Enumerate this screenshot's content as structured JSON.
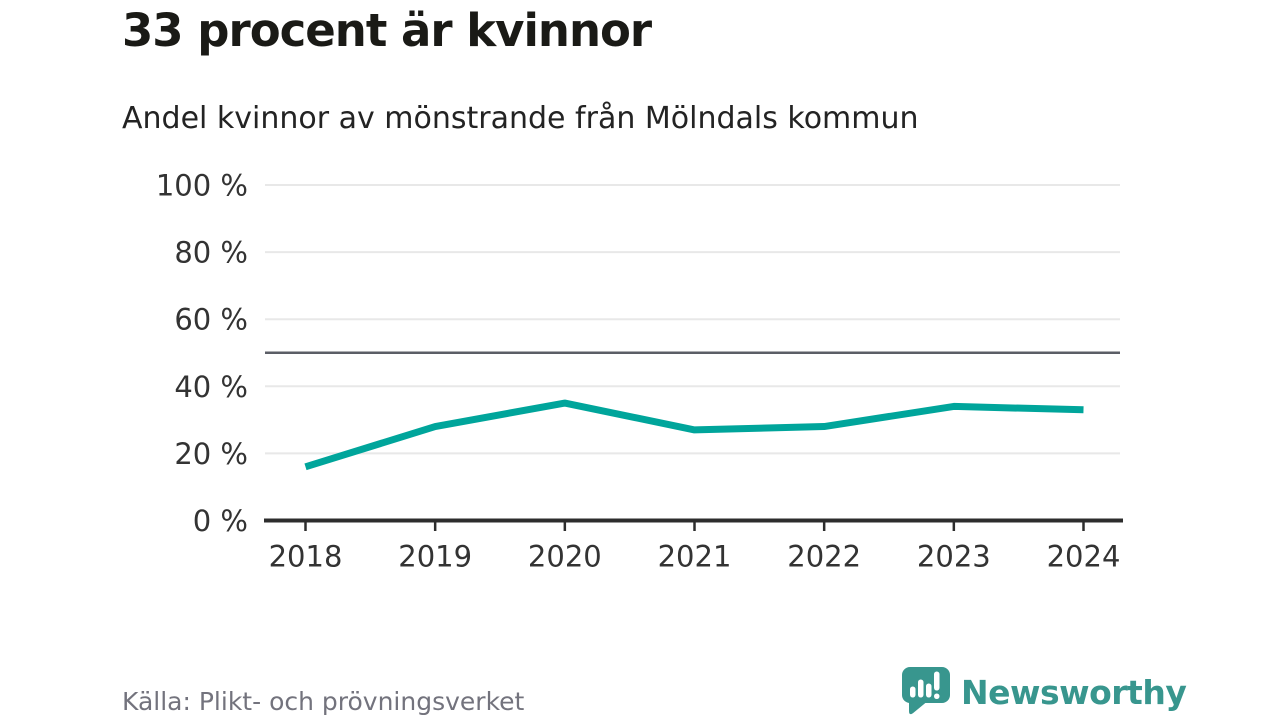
{
  "header": {
    "title": "33 procent är kvinnor",
    "subtitle": "Andel kvinnor av mönstrande från Mölndals kommun"
  },
  "chart_data": {
    "type": "line",
    "title": "33 procent är kvinnor",
    "subtitle": "Andel kvinnor av mönstrande från Mölndals kommun",
    "categories": [
      "2018",
      "2019",
      "2020",
      "2021",
      "2022",
      "2023",
      "2024"
    ],
    "series": [
      {
        "name": "Andel kvinnor av mönstrande",
        "values": [
          16,
          28,
          35,
          27,
          28,
          34,
          33
        ]
      }
    ],
    "xlabel": "",
    "ylabel": "",
    "ylim": [
      0,
      100
    ],
    "yticks": [
      0,
      20,
      40,
      60,
      80,
      100
    ],
    "ytick_suffix": " %",
    "reference_line": 50,
    "grid": true,
    "legend": "none",
    "line_color": "#00A59B",
    "reference_line_color": "#5B5E66",
    "grid_color": "#E8E8E8",
    "axis_color": "#2D2D2D",
    "tick_label_color": "#333333"
  },
  "footer": {
    "source": "Källa: Plikt- och prövningsverket",
    "brand": "Newsworthy",
    "brand_color": "#38968E",
    "logo_icon": "speech-bubble-bar-chart-exclamation"
  }
}
